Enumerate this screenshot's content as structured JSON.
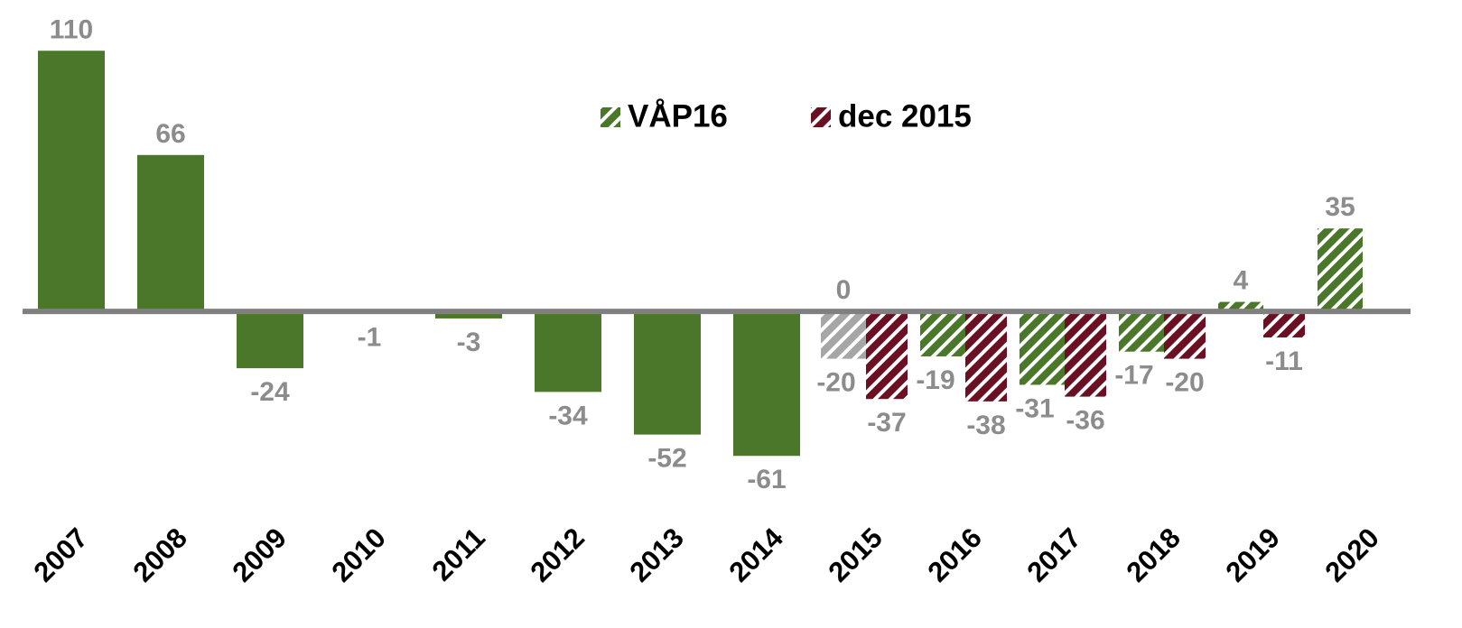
{
  "chart_data": {
    "type": "bar",
    "categories": [
      "2007",
      "2008",
      "2009",
      "2010",
      "2011",
      "2012",
      "2013",
      "2014",
      "2015",
      "2016",
      "2017",
      "2018",
      "2019",
      "2020"
    ],
    "series": [
      {
        "color": "#4a7729",
        "hatch": false,
        "values": [
          110,
          66,
          -24,
          -1,
          -3,
          -34,
          -52,
          -61,
          null,
          null,
          null,
          null,
          null,
          null
        ]
      },
      {
        "color": "#a6a6a6",
        "hatch": true,
        "values": [
          null,
          null,
          null,
          null,
          null,
          null,
          null,
          null,
          -20,
          null,
          null,
          null,
          null,
          null
        ]
      },
      {
        "name": "VÅP16",
        "color": "#4a7729",
        "hatch": true,
        "values": [
          null,
          null,
          null,
          null,
          null,
          null,
          null,
          null,
          0,
          -19,
          -31,
          -17,
          4,
          35
        ]
      },
      {
        "name": "dec 2015",
        "color": "#6b0f22",
        "hatch": true,
        "values": [
          null,
          null,
          null,
          null,
          null,
          null,
          null,
          null,
          -37,
          -38,
          -36,
          -20,
          -11,
          null
        ]
      }
    ],
    "ylim": [
      -75,
      120
    ]
  }
}
